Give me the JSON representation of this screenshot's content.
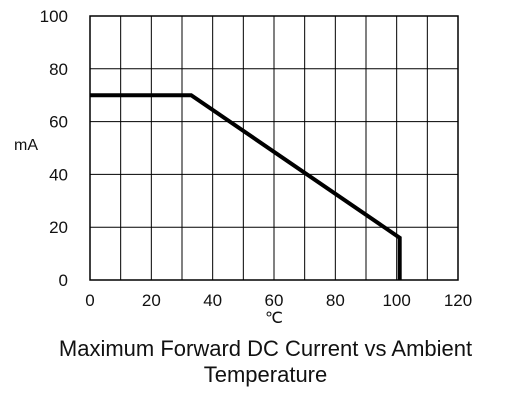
{
  "chart_data": {
    "type": "line",
    "title_lines": [
      "Maximum Forward DC Current vs Ambient",
      "Temperature"
    ],
    "xlabel": "℃",
    "ylabel": "mA",
    "xlim": [
      0,
      120
    ],
    "ylim": [
      0,
      100
    ],
    "x_ticks": [
      "0",
      "20",
      "40",
      "60",
      "80",
      "100",
      "120"
    ],
    "y_ticks": [
      "0",
      "20",
      "40",
      "60",
      "80",
      "100"
    ],
    "grid": true,
    "series": [
      {
        "x": [
          0,
          33,
          101,
          101
        ],
        "y": [
          70,
          70,
          16,
          0
        ],
        "color": "#000000"
      }
    ]
  }
}
